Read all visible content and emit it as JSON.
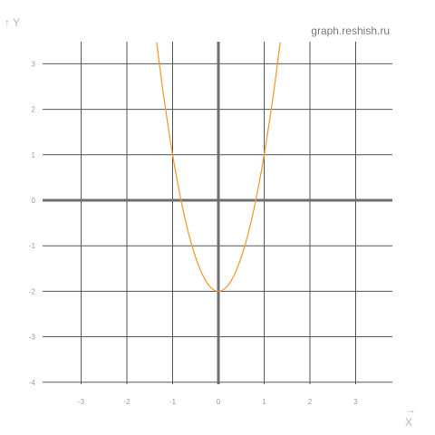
{
  "watermark": "graph.reshish.ru",
  "colors": {
    "curve": "#f39c34",
    "grid": "#555555",
    "axis": "#6e6e6e",
    "tick": "#9b9b9b"
  },
  "chart_data": {
    "type": "line",
    "title": "",
    "xlabel": "X",
    "ylabel": "Y",
    "xlim": [
      -4,
      3.85
    ],
    "ylim": [
      -4,
      3.5
    ],
    "x_ticks": [
      -3,
      -2,
      -1,
      0,
      1,
      2,
      3
    ],
    "y_ticks": [
      -4,
      -3,
      -2,
      -1,
      0,
      1,
      2,
      3
    ],
    "grid": true,
    "series": [
      {
        "x": [
          -1.35,
          -1.2,
          -1.0,
          -0.8,
          -0.6,
          -0.4,
          -0.2,
          0.0,
          0.2,
          0.4,
          0.6,
          0.8,
          1.0,
          1.2,
          1.35
        ],
        "y": [
          3.47,
          2.32,
          1.0,
          -0.08,
          -0.92,
          -1.52,
          -1.88,
          -2.0,
          -1.88,
          -1.52,
          -0.92,
          -0.08,
          1.0,
          2.32,
          3.47
        ]
      }
    ]
  }
}
